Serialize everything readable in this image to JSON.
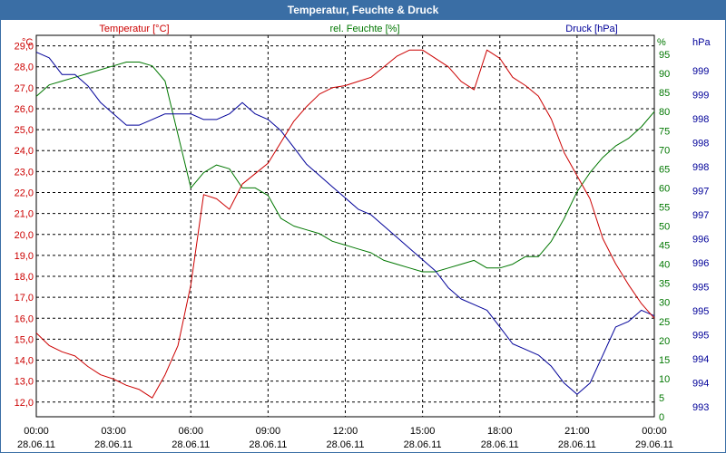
{
  "window": {
    "title": "Temperatur, Feuchte & Druck"
  },
  "chart_data": {
    "type": "line",
    "title": "Temperatur, Feuchte & Druck",
    "colors": {
      "temp": "#cc0000",
      "hum": "#007700",
      "press": "#000099",
      "grid": "#000000",
      "frame": "#3a6ea5"
    },
    "x_hours": [
      0,
      0.5,
      1,
      1.5,
      2,
      2.5,
      3,
      3.5,
      4,
      4.5,
      5,
      5.5,
      6,
      6.5,
      7,
      7.5,
      8,
      8.5,
      9,
      9.5,
      10,
      10.5,
      11,
      11.5,
      12,
      12.5,
      13,
      13.5,
      14,
      14.5,
      15,
      15.5,
      16,
      16.5,
      17,
      17.5,
      18,
      18.5,
      19,
      19.5,
      20,
      20.5,
      21,
      21.5,
      22,
      22.5,
      23,
      23.5,
      24
    ],
    "x_ticks": [
      {
        "time": "00:00",
        "date": "28.06.11"
      },
      {
        "time": "03:00",
        "date": "28.06.11"
      },
      {
        "time": "06:00",
        "date": "28.06.11"
      },
      {
        "time": "09:00",
        "date": "28.06.11"
      },
      {
        "time": "12:00",
        "date": "28.06.11"
      },
      {
        "time": "15:00",
        "date": "28.06.11"
      },
      {
        "time": "18:00",
        "date": "28.06.11"
      },
      {
        "time": "21:00",
        "date": "28.06.11"
      },
      {
        "time": "00:00",
        "date": "29.06.11"
      }
    ],
    "temperature": {
      "label": "Temperatur [°C]",
      "unit": "°C",
      "ylim": [
        11.3,
        29.5
      ],
      "ticks": [
        "29,0",
        "28,0",
        "27,0",
        "26,0",
        "25,0",
        "24,0",
        "23,0",
        "22,0",
        "21,0",
        "20,0",
        "19,0",
        "18,0",
        "17,0",
        "16,0",
        "15,0",
        "14,0",
        "13,0",
        "12,0"
      ],
      "values": [
        15.3,
        14.7,
        14.4,
        14.2,
        13.7,
        13.3,
        13.1,
        12.8,
        12.6,
        12.2,
        13.3,
        14.7,
        17.6,
        21.9,
        21.7,
        21.2,
        22.4,
        22.9,
        23.4,
        24.4,
        25.4,
        26.1,
        26.7,
        27.0,
        27.1,
        27.3,
        27.5,
        28.0,
        28.5,
        28.8,
        28.8,
        28.4,
        28.0,
        27.3,
        26.9,
        28.8,
        28.4,
        27.5,
        27.1,
        26.6,
        25.5,
        23.9,
        22.8,
        21.7,
        19.8,
        18.6,
        17.6,
        16.7,
        16.0
      ]
    },
    "humidity": {
      "label": "rel. Feuchte [%]",
      "unit": "%",
      "ylim": [
        0,
        100
      ],
      "ticks": [
        "95",
        "90",
        "85",
        "80",
        "75",
        "70",
        "65",
        "60",
        "55",
        "50",
        "45",
        "40",
        "35",
        "30",
        "25",
        "20",
        "15",
        "10",
        "5",
        "0"
      ],
      "values": [
        84,
        87,
        88,
        89,
        90,
        91,
        92,
        93,
        93,
        92,
        88,
        74,
        60,
        64,
        66,
        65,
        60,
        60,
        58,
        52,
        50,
        49,
        48,
        46,
        45,
        44,
        43,
        41,
        40,
        39,
        38,
        38,
        39,
        40,
        41,
        39,
        39,
        40,
        42,
        42,
        46,
        52,
        59,
        64,
        68,
        71,
        73,
        76,
        80
      ]
    },
    "pressure": {
      "label": "Druck [hPa]",
      "unit": "hPa",
      "ylim": [
        992.7,
        999.5
      ],
      "ticks": [
        "999",
        "999",
        "998",
        "998",
        "998",
        "997",
        "997",
        "996",
        "996",
        "995",
        "995",
        "995",
        "994",
        "994",
        "993"
      ],
      "values": [
        999.2,
        999.1,
        998.8,
        998.8,
        998.6,
        998.3,
        998.1,
        997.9,
        997.9,
        998.0,
        998.1,
        998.1,
        998.1,
        998.0,
        998.0,
        998.1,
        998.3,
        998.1,
        998.0,
        997.8,
        997.5,
        997.2,
        997.0,
        996.8,
        996.6,
        996.4,
        996.3,
        996.1,
        995.9,
        995.7,
        995.5,
        995.3,
        995.0,
        994.8,
        994.7,
        994.6,
        994.3,
        994.0,
        993.9,
        993.8,
        993.6,
        993.3,
        993.1,
        993.3,
        993.8,
        994.3,
        994.4,
        994.6,
        994.5
      ]
    }
  }
}
